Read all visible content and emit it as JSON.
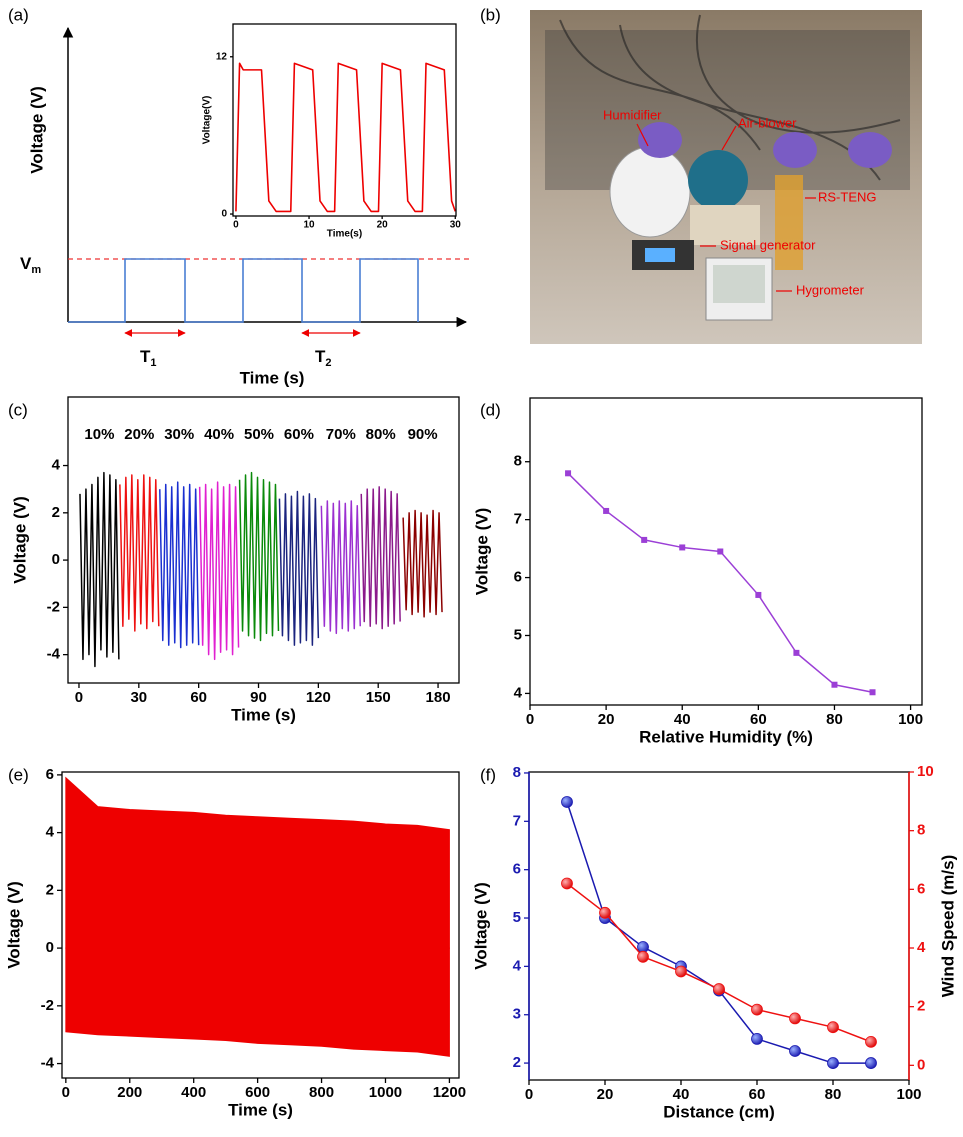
{
  "panels": [
    "(a)",
    "(b)",
    "(c)",
    "(d)",
    "(e)",
    "(f)"
  ],
  "schematic": {
    "ylabel": "Voltage (V)",
    "xlabel": "Time (s)",
    "vm": {
      "base": "V",
      "sub": "m"
    },
    "t1": {
      "base": "T",
      "sub": "1"
    },
    "t2": {
      "base": "T",
      "sub": "2"
    }
  },
  "photo": {
    "labels": [
      "Humidifier",
      "Air-blower",
      "RS-TENG",
      "Signal generator",
      "Hygrometer"
    ]
  },
  "chart_data": [
    {
      "type": "line",
      "xlabel": "Time(s)",
      "ylabel": "Voltage(V)",
      "xlim": [
        -0.4,
        30.1
      ],
      "ylim": [
        -0.15,
        14.5
      ],
      "xticks": [
        0,
        10,
        20,
        30
      ],
      "yticks": [
        0,
        12
      ],
      "color": "#ee0000",
      "x": [
        0,
        0.5,
        1,
        3.5,
        4.5,
        5.5,
        7.5,
        8,
        10.5,
        11.5,
        12.5,
        13.5,
        14,
        16.5,
        17.5,
        18.5,
        19.5,
        20,
        22.5,
        23.5,
        24.5,
        25.5,
        26,
        28.5,
        29.5,
        30
      ],
      "values": [
        0.2,
        11.5,
        11,
        11,
        1,
        0.2,
        0.2,
        11.5,
        11,
        1,
        0.2,
        0.2,
        11.5,
        11,
        1,
        0.2,
        0.2,
        11.5,
        11,
        1,
        0.2,
        0.2,
        11.5,
        11,
        1,
        0.2
      ]
    },
    {
      "type": "line",
      "xlabel": "Time (s)",
      "ylabel": "Voltage (V)",
      "xlim": [
        -5.5,
        190.5
      ],
      "ylim": [
        -5.2,
        6.9
      ],
      "xticks": [
        0,
        30,
        60,
        90,
        120,
        150,
        180
      ],
      "yticks": [
        -4,
        -2,
        0,
        2,
        4
      ],
      "series": [
        {
          "name": "10%",
          "color": "#000000",
          "x": [
            0.5,
            2,
            3.5,
            5,
            6.5,
            8,
            9.5,
            11,
            12.5,
            14,
            15.5,
            17,
            18.5,
            20
          ],
          "values": [
            2.8,
            -4.2,
            3.0,
            -4.0,
            3.2,
            -4.5,
            3.5,
            -3.8,
            3.7,
            -4.1,
            3.6,
            -3.9,
            3.4,
            -4.2
          ]
        },
        {
          "name": "20%",
          "color": "#ee1111",
          "x": [
            20.5,
            22,
            23.5,
            25,
            26.5,
            28,
            29.5,
            31,
            32.5,
            34,
            35.5,
            37,
            38.5,
            40
          ],
          "values": [
            3.2,
            -2.8,
            3.5,
            -2.5,
            3.6,
            -3.0,
            3.4,
            -2.7,
            3.6,
            -2.9,
            3.5,
            -2.6,
            3.4,
            -2.8
          ]
        },
        {
          "name": "30%",
          "color": "#1a2fd0",
          "x": [
            40.5,
            42,
            43.5,
            45,
            46.5,
            48,
            49.5,
            51,
            52.5,
            54,
            55.5,
            57,
            58.5,
            60
          ],
          "values": [
            3.0,
            -3.4,
            3.2,
            -3.6,
            3.1,
            -3.5,
            3.3,
            -3.7,
            3.1,
            -3.6,
            3.2,
            -3.5,
            3.0,
            -3.6
          ]
        },
        {
          "name": "40%",
          "color": "#e020d0",
          "x": [
            60.5,
            62,
            63.5,
            65,
            66.5,
            68,
            69.5,
            71,
            72.5,
            74,
            75.5,
            77,
            78.5,
            80
          ],
          "values": [
            3.1,
            -3.6,
            3.2,
            -4.0,
            3.0,
            -4.2,
            3.3,
            -3.9,
            3.1,
            -3.8,
            3.2,
            -4.0,
            3.1,
            -3.7
          ]
        },
        {
          "name": "50%",
          "color": "#0a8a0a",
          "x": [
            80.5,
            82,
            83.5,
            85,
            86.5,
            88,
            89.5,
            91,
            92.5,
            94,
            95.5,
            97,
            98.5,
            100
          ],
          "values": [
            3.4,
            -3.0,
            3.6,
            -3.2,
            3.7,
            -3.3,
            3.5,
            -3.4,
            3.4,
            -3.1,
            3.3,
            -3.2,
            3.2,
            -3.0
          ]
        },
        {
          "name": "60%",
          "color": "#1a237e",
          "x": [
            100.5,
            102,
            103.5,
            105,
            106.5,
            108,
            109.5,
            111,
            112.5,
            114,
            115.5,
            117,
            118.5,
            120
          ],
          "values": [
            2.6,
            -3.2,
            2.8,
            -3.4,
            2.7,
            -3.6,
            2.9,
            -3.5,
            2.7,
            -3.4,
            2.8,
            -3.6,
            2.6,
            -3.3
          ]
        },
        {
          "name": "70%",
          "color": "#9b30d0",
          "x": [
            121.5,
            123,
            124.5,
            126,
            127.5,
            129,
            130.5,
            132,
            133.5,
            135,
            136.5,
            138,
            139.5,
            141
          ],
          "values": [
            2.3,
            -2.8,
            2.5,
            -3.0,
            2.4,
            -3.1,
            2.5,
            -2.9,
            2.4,
            -3.0,
            2.5,
            -2.9,
            2.3,
            -2.8
          ]
        },
        {
          "name": "80%",
          "color": "#8b1a8b",
          "x": [
            141.5,
            143,
            144.5,
            146,
            147.5,
            149,
            150.5,
            152,
            153.5,
            155,
            156.5,
            158,
            159.5,
            161
          ],
          "values": [
            2.8,
            -2.6,
            3.0,
            -2.8,
            3.0,
            -2.7,
            3.1,
            -2.9,
            3.0,
            -2.8,
            2.9,
            -2.7,
            2.8,
            -2.6
          ]
        },
        {
          "name": "90%",
          "color": "#8b0000",
          "x": [
            162.5,
            164,
            165.5,
            167,
            168.5,
            170,
            171.5,
            173,
            174.5,
            176,
            177.5,
            179,
            180.5,
            182
          ],
          "values": [
            1.8,
            -2.1,
            2.0,
            -2.3,
            2.1,
            -2.2,
            2.0,
            -2.4,
            1.9,
            -2.2,
            2.1,
            -2.3,
            2.0,
            -2.2
          ]
        }
      ]
    },
    {
      "type": "line",
      "marker": "square",
      "xlabel": "Relative Humidity (%)",
      "ylabel": "Voltage (V)",
      "xlim": [
        0,
        103
      ],
      "ylim": [
        3.8,
        9.1
      ],
      "xticks": [
        0,
        20,
        40,
        60,
        80,
        100
      ],
      "yticks": [
        4,
        5,
        6,
        7,
        8
      ],
      "color": "#9b3fd6",
      "x": [
        10,
        20,
        30,
        40,
        50,
        60,
        70,
        80,
        90
      ],
      "values": [
        7.8,
        7.15,
        6.65,
        6.52,
        6.45,
        5.7,
        4.7,
        4.15,
        4.02
      ]
    },
    {
      "type": "area",
      "xlabel": "Time (s)",
      "ylabel": "Voltage (V)",
      "xlim": [
        -12,
        1230
      ],
      "ylim": [
        -4.5,
        6.1
      ],
      "xticks": [
        0,
        200,
        400,
        600,
        800,
        1000,
        1200
      ],
      "yticks": [
        -4,
        -2,
        0,
        2,
        4,
        6
      ],
      "x": [
        0,
        100,
        200,
        300,
        400,
        500,
        600,
        700,
        800,
        900,
        1000,
        1100,
        1200
      ],
      "series": [
        {
          "color": "#ee0000",
          "values": [
            5.9,
            4.9,
            4.8,
            4.75,
            4.7,
            4.6,
            4.55,
            4.5,
            4.45,
            4.4,
            4.3,
            4.25,
            4.1
          ]
        },
        {
          "color": "#ee0000",
          "values": [
            -2.9,
            -3.0,
            -3.05,
            -3.1,
            -3.15,
            -3.2,
            -3.3,
            -3.35,
            -3.4,
            -3.5,
            -3.55,
            -3.6,
            -3.75
          ]
        }
      ]
    },
    {
      "type": "line",
      "marker": "circle",
      "xlabel": "Distance (cm)",
      "ylabel": "Voltage (V)",
      "y2label": "Wind Speed (m/s)",
      "xlim": [
        0,
        100
      ],
      "ylim": [
        1.65,
        8.02
      ],
      "y2lim": [
        -0.5,
        10
      ],
      "xticks": [
        0,
        20,
        40,
        60,
        80,
        100
      ],
      "yticks": [
        2,
        3,
        4,
        5,
        6,
        7,
        8
      ],
      "y2ticks": [
        0,
        2,
        4,
        6,
        8,
        10
      ],
      "x": [
        10,
        20,
        30,
        40,
        50,
        60,
        70,
        80,
        90
      ],
      "series": [
        {
          "color": "#1a1ab0",
          "values": [
            7.4,
            5.0,
            4.4,
            4.0,
            3.5,
            2.5,
            2.25,
            2.0,
            2.0
          ]
        },
        {
          "color": "#ee1111",
          "axis": "y2",
          "values": [
            6.2,
            5.2,
            3.7,
            3.2,
            2.6,
            1.9,
            1.6,
            1.3,
            0.8
          ]
        }
      ]
    }
  ]
}
